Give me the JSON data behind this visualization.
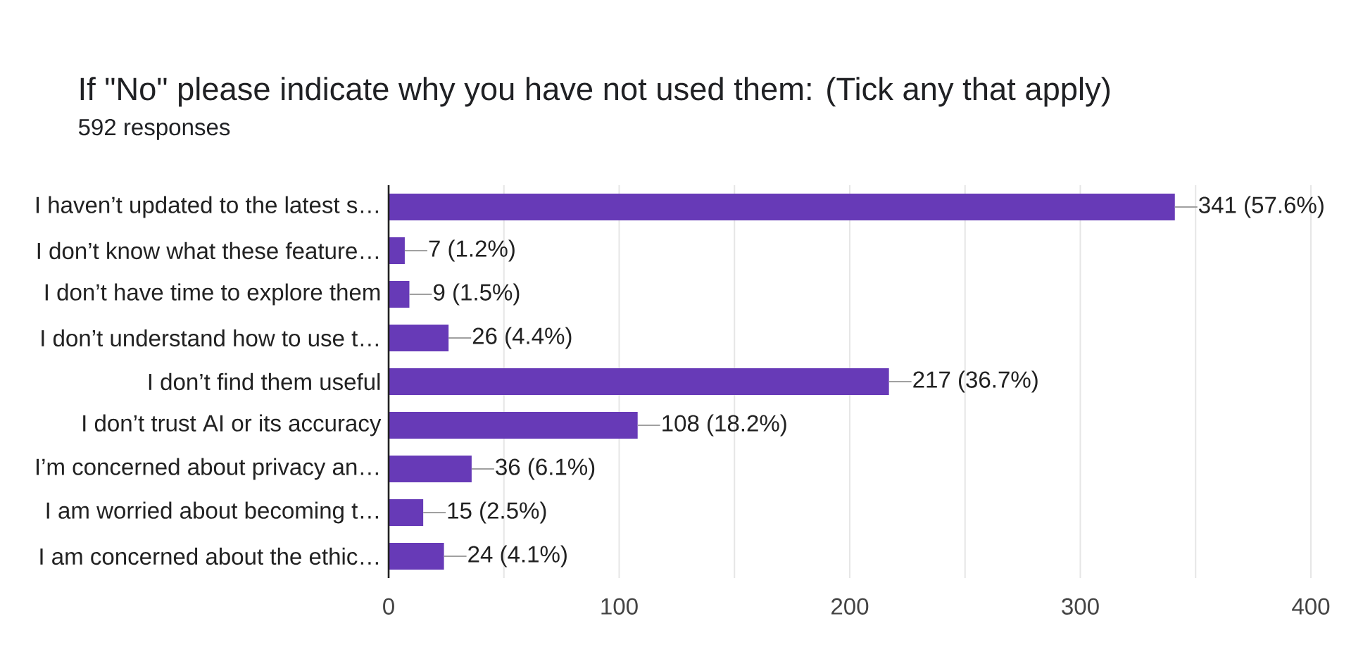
{
  "chart_data": {
    "type": "bar",
    "orientation": "horizontal",
    "title": "If \"No\" please indicate why you have not used them: (Tick any that apply)",
    "subtitle": "592 responses",
    "categories": [
      "I haven’t updated to the latest s…",
      "I don’t know what these feature…",
      "I don’t have time to explore them",
      "I don’t understand how to use t…",
      "I don’t find them useful",
      "I don’t trust AI or its accuracy",
      "I’m concerned about privacy an…",
      "I am worried about becoming t…",
      "I am concerned about the ethic…"
    ],
    "values": [
      341,
      7,
      9,
      26,
      217,
      108,
      36,
      15,
      24
    ],
    "value_labels": [
      "341 (57.6%)",
      "7 (1.2%)",
      "9 (1.5%)",
      "26 (4.4%)",
      "217 (36.7%)",
      "108 (18.2%)",
      "36 (6.1%)",
      "15 (2.5%)",
      "24 (4.1%)"
    ],
    "color": "#673ab7",
    "xlim": [
      0,
      400
    ],
    "xticks": [
      0,
      {
        "value": 50,
        "label": null
      },
      100,
      {
        "value": 150,
        "label": null
      },
      200,
      {
        "value": 250,
        "label": null
      },
      300,
      {
        "value": 350,
        "label": null
      },
      400
    ],
    "grid": "x"
  }
}
